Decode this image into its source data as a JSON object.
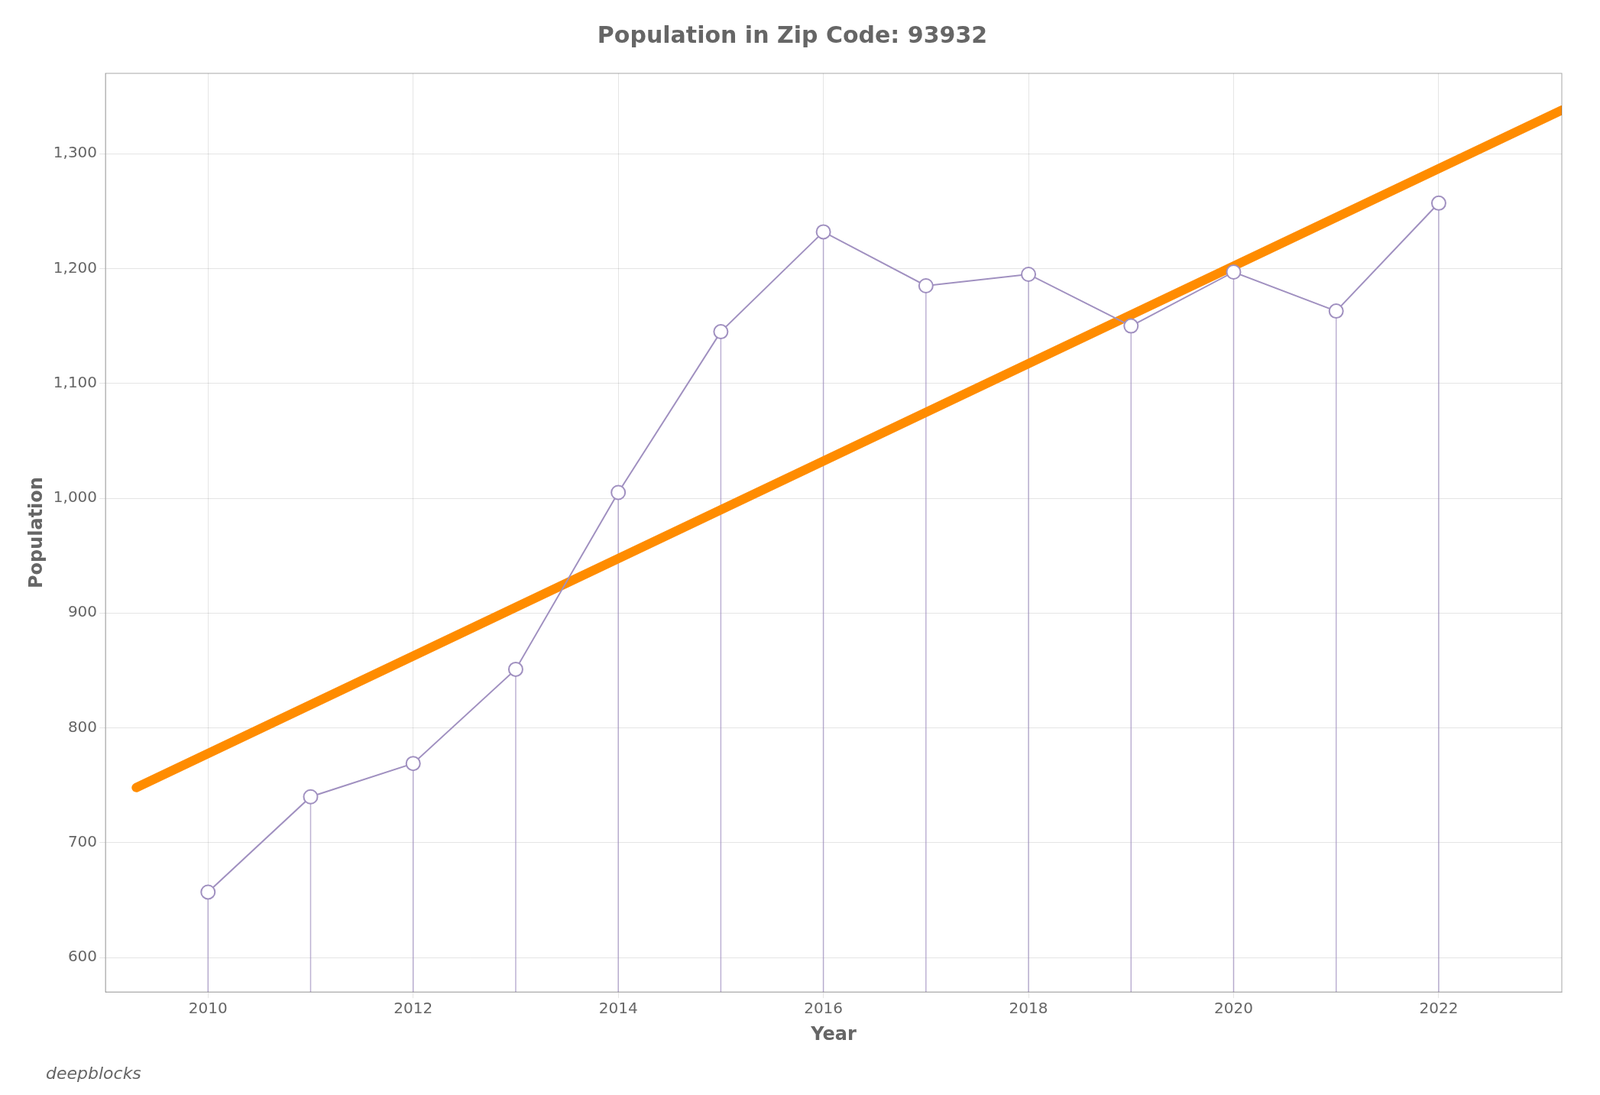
{
  "chart_data": {
    "type": "line",
    "title": "Population in Zip Code: 93932",
    "xlabel": "Year",
    "ylabel": "Population",
    "x": [
      2010,
      2011,
      2012,
      2013,
      2014,
      2015,
      2016,
      2017,
      2018,
      2019,
      2020,
      2021,
      2022
    ],
    "values": [
      657,
      740,
      769,
      851,
      1005,
      1145,
      1232,
      1185,
      1195,
      1150,
      1197,
      1163,
      1257
    ],
    "color": "#a090c0",
    "marker": "circle",
    "trend": {
      "x": [
        2009.3,
        2023.2
      ],
      "values": [
        748,
        1338
      ],
      "color": "#ff8c00"
    },
    "xlim": [
      2009.0,
      2023.2
    ],
    "ylim": [
      570,
      1370
    ],
    "xticks": [
      2010,
      2012,
      2014,
      2016,
      2018,
      2020,
      2022
    ],
    "yticks": [
      600,
      700,
      800,
      900,
      {
        "value": 1000,
        "label": "1,000"
      },
      {
        "value": 1100,
        "label": "1,100"
      },
      {
        "value": 1200,
        "label": "1,200"
      },
      {
        "value": 1300,
        "label": "1,300"
      }
    ],
    "grid": true,
    "watermark": "deepblocks"
  }
}
